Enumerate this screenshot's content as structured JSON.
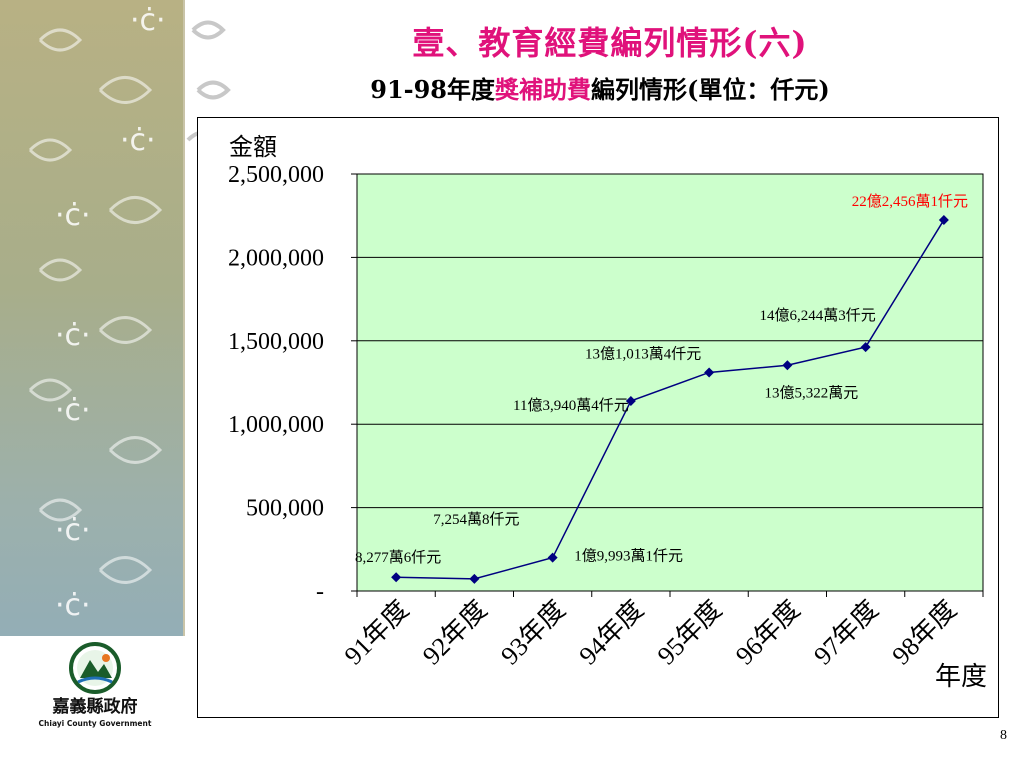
{
  "slide": {
    "title": "壹、教育經費編列情形(六)",
    "subtitle_prefix": "91-98年度",
    "subtitle_highlight": "獎補助費",
    "subtitle_suffix": "編列情形(單位：仟元)",
    "page_number": "8",
    "logo_text": "嘉義縣政府",
    "logo_subtext": "Chiayi County Government"
  },
  "colors": {
    "title": "#e0127b",
    "plot_bg": "#ccffcc",
    "line": "#000080",
    "highlight_label": "#ff0000"
  },
  "chart_data": {
    "type": "line",
    "ylabel": "金額",
    "xlabel": "年度",
    "ylim": [
      0,
      2500000
    ],
    "yticks": [
      {
        "value": 0,
        "label": "-"
      },
      {
        "value": 500000,
        "label": "500,000"
      },
      {
        "value": 1000000,
        "label": "1,000,000"
      },
      {
        "value": 1500000,
        "label": "1,500,000"
      },
      {
        "value": 2000000,
        "label": "2,000,000"
      },
      {
        "value": 2500000,
        "label": "2,500,000"
      }
    ],
    "categories": [
      "91年度",
      "92年度",
      "93年度",
      "94年度",
      "95年度",
      "96年度",
      "97年度",
      "98年度"
    ],
    "values": [
      82776,
      72548,
      199931,
      1139404,
      1310134,
      1353220,
      1462443,
      2224561
    ],
    "data_labels": [
      "8,277萬6仟元",
      "7,254萬8仟元",
      "1億9,993萬1仟元",
      "11億3,940萬4仟元",
      "13億1,013萬4仟元",
      "13億5,322萬元",
      "14億6,244萬3仟元",
      "22億2,456萬1仟元"
    ],
    "grid": true,
    "legend": "none"
  }
}
